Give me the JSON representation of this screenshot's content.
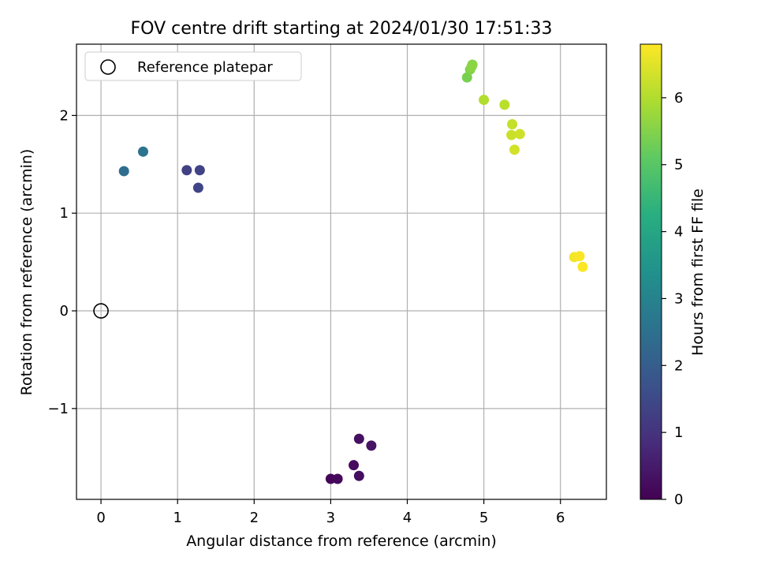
{
  "chart_data": {
    "type": "scatter",
    "title": "FOV centre drift starting at 2024/01/30 17:51:33",
    "xlabel": "Angular distance from reference (arcmin)",
    "ylabel": "Rotation from reference (arcmin)",
    "xlim": [
      -0.32,
      6.6
    ],
    "ylim": [
      -1.93,
      2.73
    ],
    "xticks": [
      0,
      1,
      2,
      3,
      4,
      5,
      6
    ],
    "yticks": [
      -1,
      0,
      1,
      2
    ],
    "xtick_labels": [
      "0",
      "1",
      "2",
      "3",
      "4",
      "5",
      "6"
    ],
    "ytick_labels": [
      "−1",
      "0",
      "1",
      "2"
    ],
    "grid": true,
    "legend": {
      "position": "top-left",
      "label": "Reference platepar"
    },
    "reference_point": {
      "x": 0,
      "y": 0
    },
    "colorbar": {
      "label": "Hours from first FF file",
      "range": [
        0,
        6.8
      ],
      "ticks": [
        0,
        1,
        2,
        3,
        4,
        5,
        6
      ],
      "tick_labels": [
        "0",
        "1",
        "2",
        "3",
        "4",
        "5",
        "6"
      ],
      "colormap": "viridis"
    },
    "points": [
      {
        "x": 3.0,
        "y": -1.72,
        "hours": 0.1
      },
      {
        "x": 3.09,
        "y": -1.72,
        "hours": 0.15
      },
      {
        "x": 3.3,
        "y": -1.58,
        "hours": 0.2
      },
      {
        "x": 3.37,
        "y": -1.69,
        "hours": 0.25
      },
      {
        "x": 3.37,
        "y": -1.31,
        "hours": 0.3
      },
      {
        "x": 3.53,
        "y": -1.38,
        "hours": 0.35
      },
      {
        "x": 1.12,
        "y": 1.44,
        "hours": 1.3
      },
      {
        "x": 1.29,
        "y": 1.44,
        "hours": 1.35
      },
      {
        "x": 1.27,
        "y": 1.26,
        "hours": 1.4
      },
      {
        "x": 0.3,
        "y": 1.43,
        "hours": 2.4
      },
      {
        "x": 0.55,
        "y": 1.63,
        "hours": 2.6
      },
      {
        "x": 4.78,
        "y": 2.39,
        "hours": 5.4
      },
      {
        "x": 4.82,
        "y": 2.47,
        "hours": 5.5
      },
      {
        "x": 4.85,
        "y": 2.52,
        "hours": 5.55
      },
      {
        "x": 4.84,
        "y": 2.5,
        "hours": 5.6
      },
      {
        "x": 5.0,
        "y": 2.16,
        "hours": 6.0
      },
      {
        "x": 5.27,
        "y": 2.11,
        "hours": 6.1
      },
      {
        "x": 5.37,
        "y": 1.91,
        "hours": 6.2
      },
      {
        "x": 5.36,
        "y": 1.8,
        "hours": 6.25
      },
      {
        "x": 5.47,
        "y": 1.81,
        "hours": 6.3
      },
      {
        "x": 5.4,
        "y": 1.65,
        "hours": 6.35
      },
      {
        "x": 6.18,
        "y": 0.55,
        "hours": 6.7
      },
      {
        "x": 6.25,
        "y": 0.56,
        "hours": 6.75
      },
      {
        "x": 6.29,
        "y": 0.45,
        "hours": 6.78
      }
    ]
  }
}
